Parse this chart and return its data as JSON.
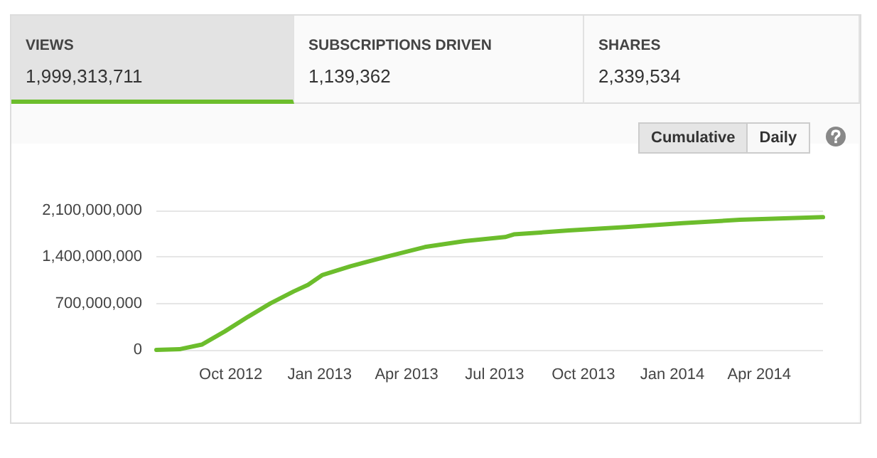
{
  "chart_data": {
    "type": "line",
    "annotations": [
      "VIEWS",
      "1,999,313,711",
      "SUBSCRIPTIONS DRIVEN",
      "1,139,362",
      "SHARES",
      "2,339,534",
      "Cumulative",
      "Daily"
    ],
    "x": [
      "2012-07-16",
      "2012-08-09",
      "2012-09-01",
      "2012-09-25",
      "2012-10-19",
      "2012-11-11",
      "2012-12-05",
      "2012-12-20",
      "2013-01-04",
      "2013-02-02",
      "2013-03-10",
      "2013-04-20",
      "2013-05-31",
      "2013-07-12",
      "2013-07-21",
      "2013-09-16",
      "2013-11-14",
      "2014-01-12",
      "2014-03-12",
      "2014-06-06"
    ],
    "series": [
      {
        "color": "#6cbd2c",
        "values": [
          0,
          10000000,
          80000000,
          280000000,
          500000000,
          700000000,
          880000000,
          980000000,
          1130000000,
          1260000000,
          1400000000,
          1550000000,
          1640000000,
          1700000000,
          1740000000,
          1800000000,
          1850000000,
          1910000000,
          1960000000,
          2000000000
        ]
      }
    ],
    "xlim": [
      "2012-07-16",
      "2014-06-06"
    ],
    "xticks": [
      {
        "value": "2012-10-01",
        "label": "Oct 2012"
      },
      {
        "value": "2013-01-01",
        "label": "Jan 2013"
      },
      {
        "value": "2013-04-01",
        "label": "Apr 2013"
      },
      {
        "value": "2013-07-01",
        "label": "Jul 2013"
      },
      {
        "value": "2013-10-01",
        "label": "Oct 2013"
      },
      {
        "value": "2014-01-01",
        "label": "Jan 2014"
      },
      {
        "value": "2014-04-01",
        "label": "Apr 2014"
      }
    ],
    "ylim": [
      0,
      2100000000
    ],
    "yticks": [
      {
        "value": 0,
        "label": "0"
      },
      {
        "value": 700000000,
        "label": "700,000,000"
      },
      {
        "value": 1400000000,
        "label": "1,400,000,000"
      },
      {
        "value": 2100000000,
        "label": "2,100,000,000"
      }
    ],
    "grid": "y",
    "marker": "none",
    "line_style": "solid"
  }
}
